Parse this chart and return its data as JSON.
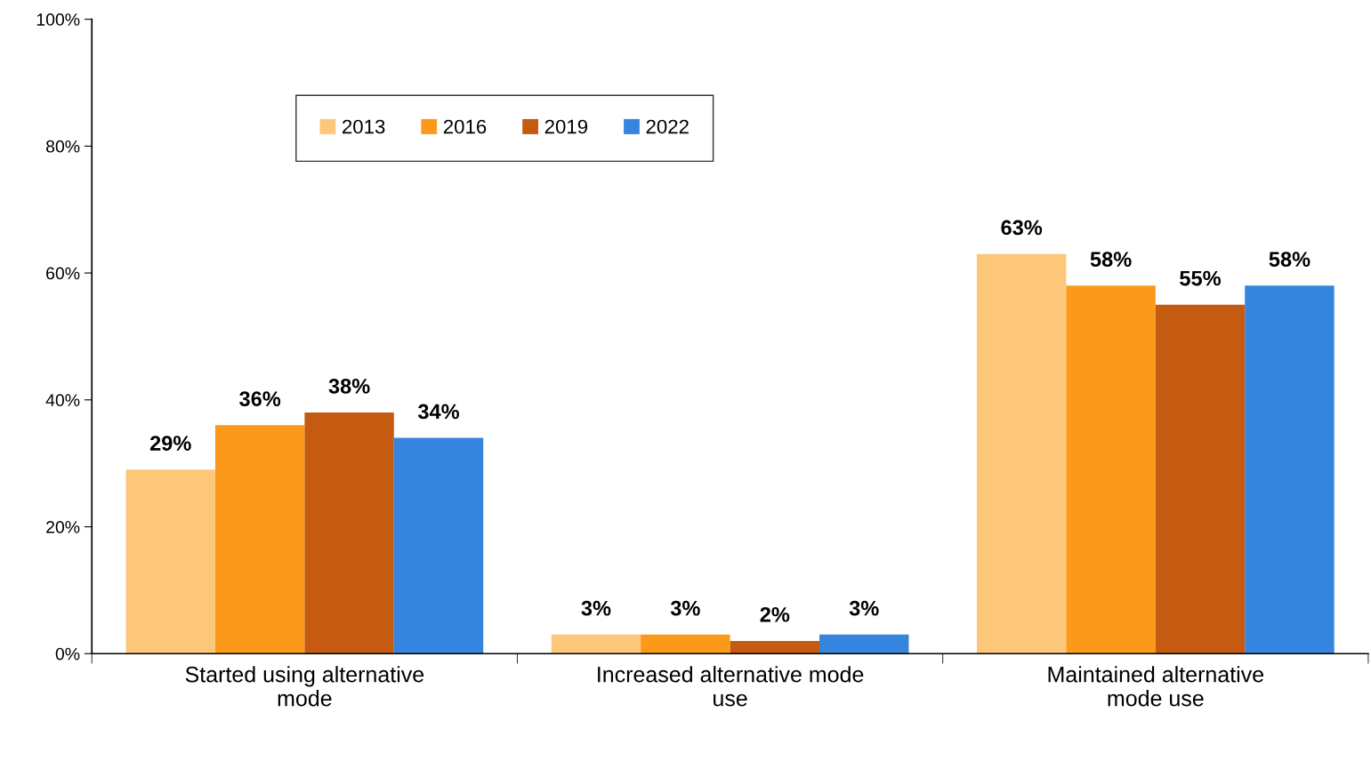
{
  "chart_data": {
    "type": "bar",
    "categories": [
      "Started using alternative\nmode",
      "Increased alternative mode\nuse",
      "Maintained alternative\nmode use"
    ],
    "series": [
      {
        "name": "2013",
        "color": "#fdc77a",
        "values": [
          29,
          3,
          63
        ],
        "value_labels": [
          "29%",
          "3%",
          "63%"
        ]
      },
      {
        "name": "2016",
        "color": "#fb9a1a",
        "values": [
          36,
          3,
          58
        ],
        "value_labels": [
          "36%",
          "3%",
          "58%"
        ]
      },
      {
        "name": "2019",
        "color": "#c55a11",
        "values": [
          38,
          2,
          55
        ],
        "value_labels": [
          "38%",
          "2%",
          "55%"
        ]
      },
      {
        "name": "2022",
        "color": "#3584dd",
        "values": [
          34,
          3,
          58
        ],
        "value_labels": [
          "34%",
          "3%",
          "58%"
        ]
      }
    ],
    "ylim": [
      0,
      100
    ],
    "yticks": [
      {
        "value": 0,
        "label": "0%"
      },
      {
        "value": 20,
        "label": "20%"
      },
      {
        "value": 40,
        "label": "40%"
      },
      {
        "value": 60,
        "label": "60%"
      },
      {
        "value": 80,
        "label": "80%"
      },
      {
        "value": 100,
        "label": "100%"
      }
    ],
    "legend": "top left"
  }
}
